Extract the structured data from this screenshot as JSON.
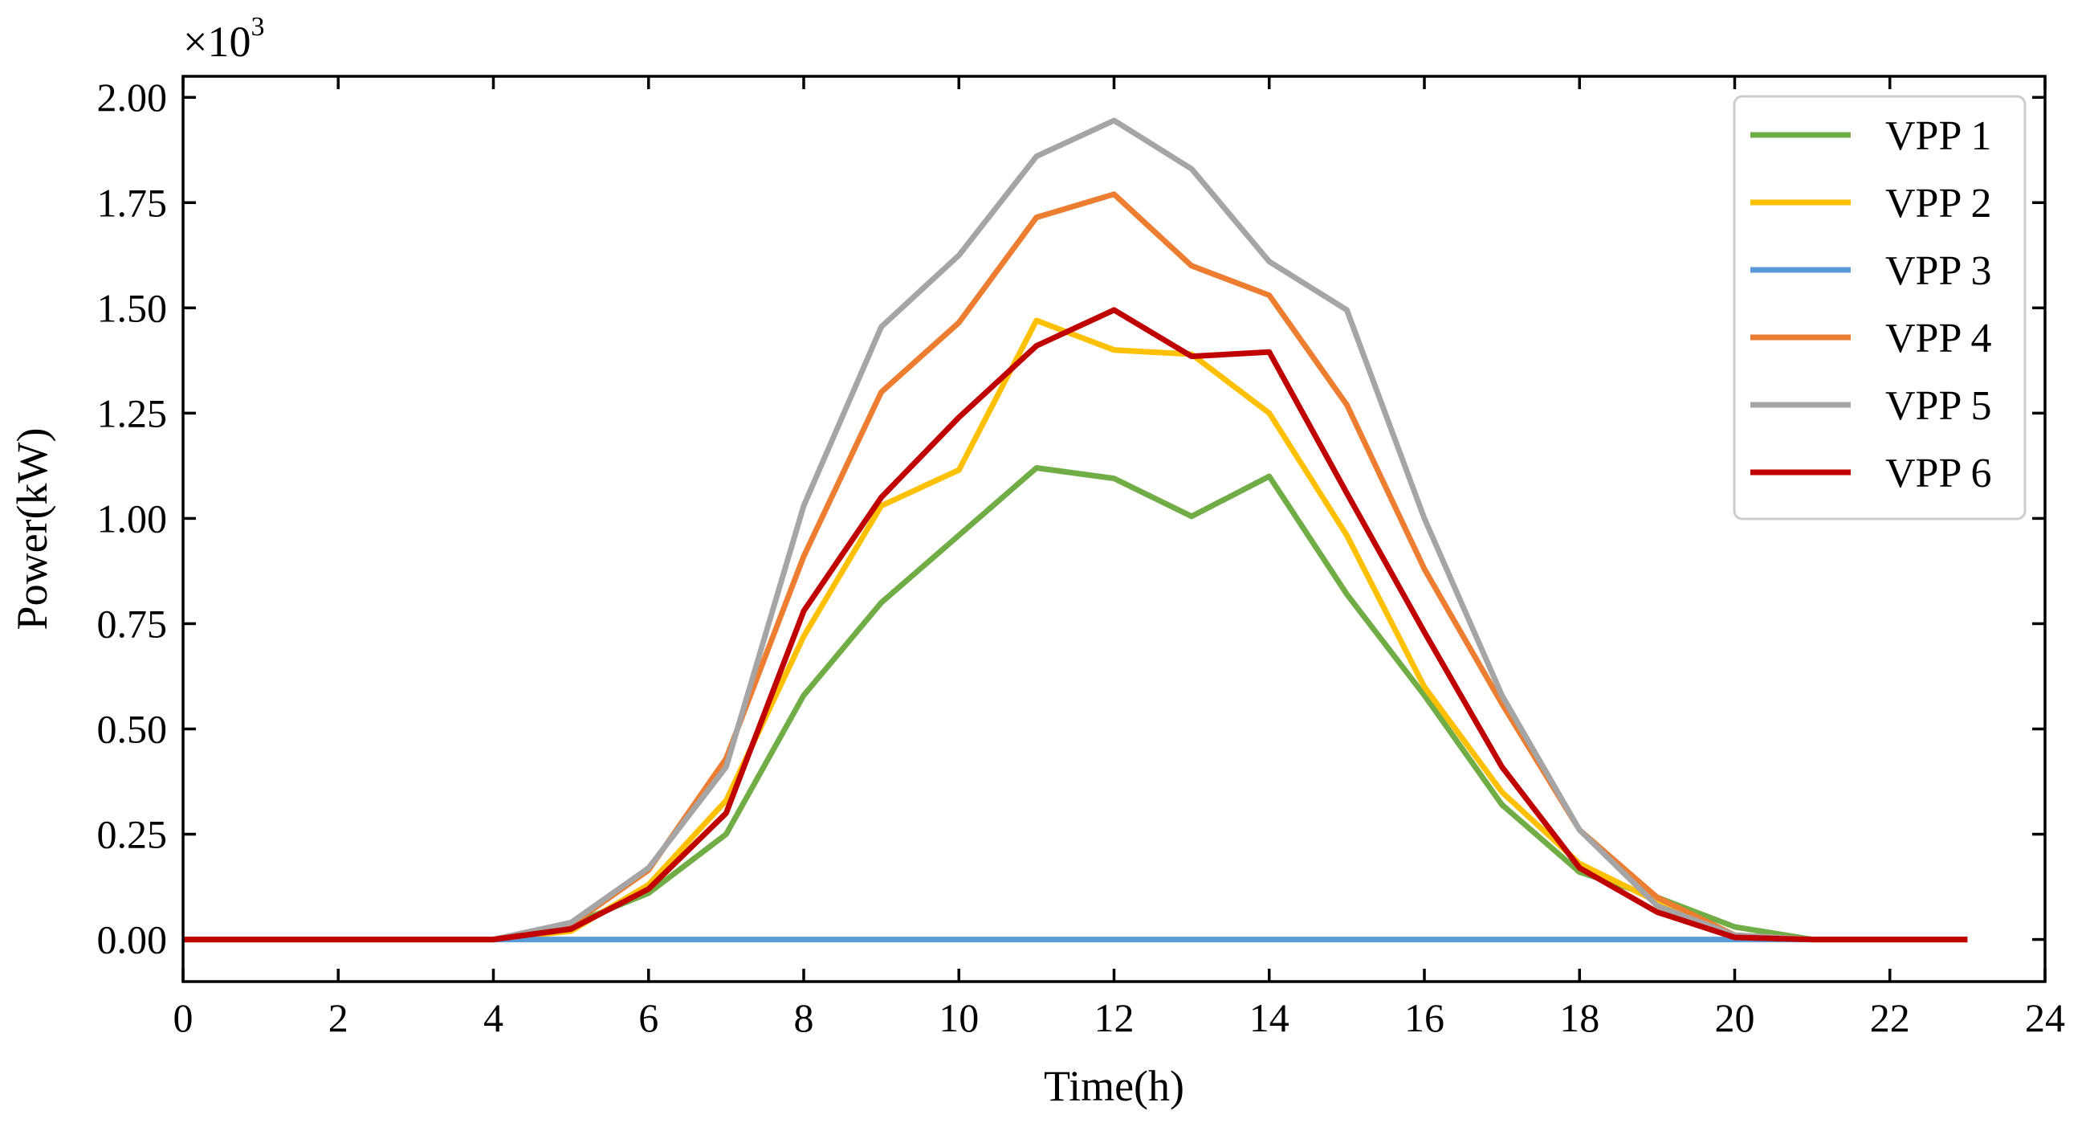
{
  "chart_data": {
    "type": "line",
    "title": "",
    "xlabel": "Time(h)",
    "ylabel": "Power(kW)",
    "y_multiplier": {
      "base": "×10",
      "exponent": "3"
    },
    "xlim": [
      0,
      24
    ],
    "ylim": [
      -0.1,
      2.05
    ],
    "xticks": [
      0,
      2,
      4,
      6,
      8,
      10,
      12,
      14,
      16,
      18,
      20,
      22,
      24
    ],
    "xtick_labels": [
      "0",
      "2",
      "4",
      "6",
      "8",
      "10",
      "12",
      "14",
      "16",
      "18",
      "20",
      "22",
      "24"
    ],
    "yticks": [
      0,
      0.25,
      0.5,
      0.75,
      1.0,
      1.25,
      1.5,
      1.75,
      2.0
    ],
    "ytick_labels": [
      "0.00",
      "0.25",
      "0.50",
      "0.75",
      "1.00",
      "1.25",
      "1.50",
      "1.75",
      "2.00"
    ],
    "grid": false,
    "legend_position": "top-right",
    "x": [
      0,
      1,
      2,
      3,
      4,
      5,
      6,
      7,
      8,
      9,
      10,
      11,
      12,
      13,
      14,
      15,
      16,
      17,
      18,
      19,
      20,
      21,
      22,
      23
    ],
    "series": [
      {
        "name": "VPP 1",
        "color": "#70ad47",
        "values": [
          0,
          0,
          0,
          0,
          0,
          0.035,
          0.11,
          0.25,
          0.58,
          0.8,
          0.96,
          1.12,
          1.095,
          1.005,
          1.1,
          0.82,
          0.58,
          0.32,
          0.16,
          0.1,
          0.03,
          0,
          0,
          0
        ]
      },
      {
        "name": "VPP 2",
        "color": "#ffc000",
        "values": [
          0,
          0,
          0,
          0,
          0,
          0.02,
          0.13,
          0.33,
          0.72,
          1.03,
          1.115,
          1.47,
          1.4,
          1.39,
          1.25,
          0.96,
          0.6,
          0.35,
          0.18,
          0.09,
          0.01,
          0,
          0,
          0
        ]
      },
      {
        "name": "VPP 3",
        "color": "#5b9bd5",
        "values": [
          0,
          0,
          0,
          0,
          0,
          0,
          0,
          0,
          0,
          0,
          0,
          0,
          0,
          0,
          0,
          0,
          0,
          0,
          0,
          0,
          0,
          0,
          0,
          0
        ]
      },
      {
        "name": "VPP 4",
        "color": "#ed7d31",
        "values": [
          0,
          0,
          0,
          0,
          0,
          0.035,
          0.165,
          0.43,
          0.91,
          1.3,
          1.465,
          1.715,
          1.77,
          1.6,
          1.53,
          1.27,
          0.88,
          0.56,
          0.26,
          0.1,
          0.01,
          0,
          0,
          0
        ]
      },
      {
        "name": "VPP 5",
        "color": "#a5a5a5",
        "values": [
          0,
          0,
          0,
          0,
          0,
          0.04,
          0.17,
          0.41,
          1.03,
          1.455,
          1.625,
          1.86,
          1.945,
          1.83,
          1.61,
          1.495,
          1.0,
          0.58,
          0.26,
          0.08,
          0.01,
          0,
          0,
          0
        ]
      },
      {
        "name": "VPP 6",
        "color": "#c00000",
        "values": [
          0,
          0,
          0,
          0,
          0,
          0.025,
          0.12,
          0.3,
          0.78,
          1.05,
          1.24,
          1.41,
          1.495,
          1.385,
          1.395,
          1.06,
          0.73,
          0.41,
          0.17,
          0.065,
          0.005,
          0,
          0,
          0
        ]
      }
    ]
  }
}
